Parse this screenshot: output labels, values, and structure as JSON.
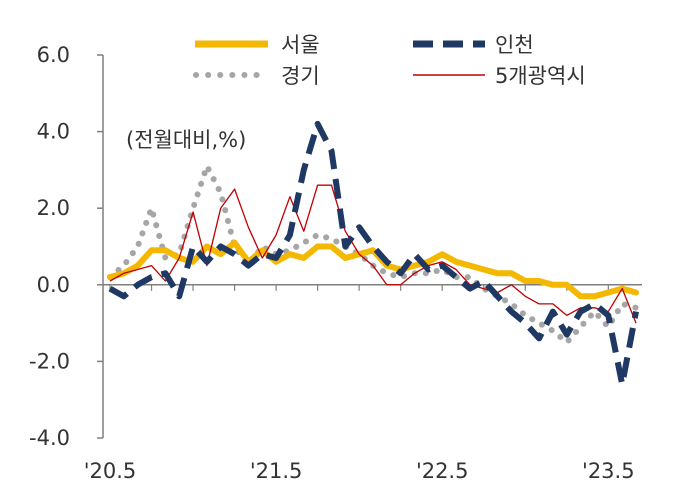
{
  "chart_data": {
    "type": "line",
    "unit_label": "(전월대비,%)",
    "ylim": [
      -4.0,
      6.0
    ],
    "y_ticks": [
      "6.0",
      "4.0",
      "2.0",
      "0.0",
      "-2.0",
      "-4.0"
    ],
    "y_tick_values": [
      6,
      4,
      2,
      0,
      -2,
      -4
    ],
    "x_ticks": [
      "'20.5",
      "'21.5",
      "'22.5",
      "'23.5"
    ],
    "x_tick_indices": [
      0,
      12,
      24,
      36
    ],
    "x_start": "2020-05",
    "x_end": "2023-06",
    "grid": false,
    "legend_position": "top",
    "series": [
      {
        "name": "서울",
        "color": "#F5B800",
        "style": "solid-thick",
        "values": [
          0.2,
          0.3,
          0.5,
          0.9,
          0.9,
          0.7,
          0.6,
          1.0,
          0.8,
          1.1,
          0.6,
          0.9,
          0.6,
          0.8,
          0.7,
          1.0,
          1.0,
          0.7,
          0.8,
          0.9,
          0.5,
          0.4,
          0.5,
          0.6,
          0.8,
          0.6,
          0.5,
          0.4,
          0.3,
          0.3,
          0.1,
          0.1,
          0.0,
          0.0,
          -0.3,
          -0.3,
          -0.2,
          -0.1,
          -0.2
        ]
      },
      {
        "name": "인천",
        "color": "#1F3864",
        "style": "dashed-thick",
        "values": [
          -0.1,
          -0.3,
          0.0,
          0.2,
          0.3,
          -0.3,
          1.0,
          0.6,
          1.0,
          0.8,
          0.5,
          0.8,
          0.7,
          1.3,
          3.0,
          4.2,
          3.5,
          1.0,
          1.5,
          1.0,
          0.6,
          0.3,
          0.8,
          0.4,
          0.5,
          0.2,
          -0.1,
          0.1,
          -0.3,
          -0.7,
          -1.0,
          -1.4,
          -0.7,
          -1.3,
          -0.7,
          -0.5,
          -0.8,
          -2.6,
          -0.7
        ]
      },
      {
        "name": "경기",
        "color": "#A6A6A6",
        "style": "dotted",
        "values": [
          0.2,
          0.5,
          1.0,
          2.0,
          0.7,
          0.8,
          2.0,
          3.1,
          2.4,
          1.0,
          0.5,
          1.0,
          0.8,
          0.9,
          1.1,
          1.3,
          1.2,
          1.0,
          0.8,
          0.5,
          0.3,
          0.2,
          0.3,
          0.3,
          0.4,
          0.2,
          0.2,
          -0.1,
          -0.3,
          -0.5,
          -0.8,
          -1.0,
          -1.2,
          -1.5,
          -1.1,
          -0.7,
          -1.1,
          -0.5,
          -0.6
        ]
      },
      {
        "name": "5개광역시",
        "color": "#C00000",
        "style": "thin",
        "values": [
          0.1,
          0.3,
          0.4,
          0.5,
          0.1,
          0.7,
          1.9,
          0.5,
          2.0,
          2.5,
          1.5,
          0.7,
          1.3,
          2.3,
          1.4,
          2.6,
          2.6,
          1.4,
          0.8,
          0.5,
          0.0,
          0.0,
          0.3,
          0.5,
          0.6,
          0.4,
          0.0,
          -0.1,
          -0.2,
          0.0,
          -0.3,
          -0.5,
          -0.5,
          -0.8,
          -0.6,
          -0.6,
          -0.7,
          -0.1,
          -1.0
        ]
      }
    ]
  }
}
